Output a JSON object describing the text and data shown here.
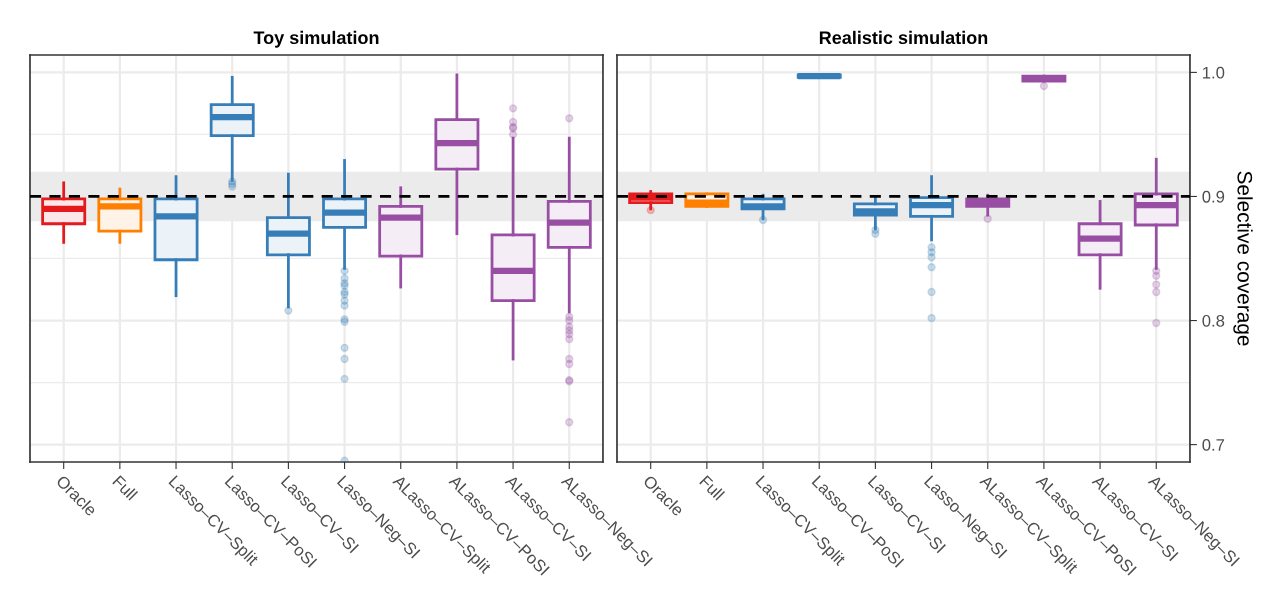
{
  "chart_data": [
    {
      "type": "box",
      "title": "Toy simulation",
      "categories": [
        "Oracle",
        "Full",
        "Lasso–CV–Split",
        "Lasso–CV–PoSI",
        "Lasso–CV–SI",
        "Lasso–Neg–SI",
        "ALasso–CV–Split",
        "ALasso–CV–PoSI",
        "ALasso–CV–SI",
        "ALasso–Neg–SI"
      ],
      "colors": [
        "#e41a1c",
        "#ff7f00",
        "#377eb8",
        "#377eb8",
        "#377eb8",
        "#377eb8",
        "#984ea3",
        "#984ea3",
        "#984ea3",
        "#984ea3"
      ],
      "boxes": [
        {
          "low": 0.863,
          "q1": 0.878,
          "median": 0.89,
          "q3": 0.898,
          "high": 0.911
        },
        {
          "low": 0.863,
          "q1": 0.872,
          "median": 0.892,
          "q3": 0.898,
          "high": 0.906
        },
        {
          "low": 0.82,
          "q1": 0.849,
          "median": 0.884,
          "q3": 0.898,
          "high": 0.916
        },
        {
          "low": 0.913,
          "q1": 0.949,
          "median": 0.964,
          "q3": 0.974,
          "high": 0.996,
          "outliers": [
            0.912,
            0.91,
            0.908
          ]
        },
        {
          "low": 0.811,
          "q1": 0.853,
          "median": 0.87,
          "q3": 0.883,
          "high": 0.918,
          "outliers": [
            0.808
          ]
        },
        {
          "low": 0.842,
          "q1": 0.875,
          "median": 0.887,
          "q3": 0.898,
          "high": 0.929,
          "outliers": [
            0.84,
            0.834,
            0.83,
            0.828,
            0.823,
            0.821,
            0.816,
            0.812,
            0.801,
            0.799,
            0.778,
            0.769,
            0.753,
            0.687
          ]
        },
        {
          "low": 0.827,
          "q1": 0.852,
          "median": 0.883,
          "q3": 0.892,
          "high": 0.907
        },
        {
          "low": 0.87,
          "q1": 0.922,
          "median": 0.943,
          "q3": 0.962,
          "high": 0.998
        },
        {
          "low": 0.769,
          "q1": 0.816,
          "median": 0.84,
          "q3": 0.869,
          "high": 0.947,
          "outliers": [
            0.971,
            0.96,
            0.956,
            0.955,
            0.95
          ]
        },
        {
          "low": 0.807,
          "q1": 0.859,
          "median": 0.879,
          "q3": 0.896,
          "high": 0.947,
          "outliers": [
            0.963,
            0.803,
            0.8,
            0.795,
            0.792,
            0.789,
            0.785,
            0.769,
            0.765,
            0.752,
            0.751,
            0.718
          ]
        }
      ],
      "ylim": [
        0.686,
        1.014
      ],
      "yticks": [
        0.7,
        0.8,
        0.9,
        1.0
      ],
      "tick_labels": "x",
      "grid": true,
      "ref_lines": [
        {
          "axis": "y",
          "value": 0.9,
          "line_style": "dashed",
          "color": "#000000"
        }
      ],
      "bands": [
        {
          "axis": "y",
          "from": 0.88,
          "to": 0.92,
          "color": "#ebebeb"
        }
      ]
    },
    {
      "type": "box",
      "title": "Realistic simulation",
      "ylabel": "Selective coverage",
      "categories": [
        "Oracle",
        "Full",
        "Lasso–CV–Split",
        "Lasso–CV–PoSI",
        "Lasso–CV–SI",
        "Lasso–Neg–SI",
        "ALasso–CV–Split",
        "ALasso–CV–PoSI",
        "ALasso–CV–SI",
        "ALasso–Neg–SI"
      ],
      "colors": [
        "#e41a1c",
        "#ff7f00",
        "#377eb8",
        "#377eb8",
        "#377eb8",
        "#377eb8",
        "#984ea3",
        "#984ea3",
        "#984ea3",
        "#984ea3"
      ],
      "boxes": [
        {
          "low": 0.89,
          "q1": 0.895,
          "median": 0.899,
          "q3": 0.902,
          "high": 0.904,
          "outliers": [
            0.889
          ]
        },
        {
          "low": 0.892,
          "q1": 0.892,
          "median": 0.895,
          "q3": 0.902,
          "high": 0.902
        },
        {
          "low": 0.882,
          "q1": 0.89,
          "median": 0.892,
          "q3": 0.898,
          "high": 0.901,
          "outliers": [
            0.881
          ]
        },
        {
          "low": 0.996,
          "q1": 0.996,
          "median": 0.997,
          "q3": 0.998,
          "high": 0.998
        },
        {
          "low": 0.874,
          "q1": 0.885,
          "median": 0.888,
          "q3": 0.894,
          "high": 0.899,
          "outliers": [
            0.873,
            0.87
          ]
        },
        {
          "low": 0.865,
          "q1": 0.884,
          "median": 0.893,
          "q3": 0.899,
          "high": 0.916,
          "outliers": [
            0.859,
            0.855,
            0.851,
            0.843,
            0.823,
            0.802
          ]
        },
        {
          "low": 0.885,
          "q1": 0.892,
          "median": 0.895,
          "q3": 0.898,
          "high": 0.901,
          "outliers": [
            0.882
          ]
        },
        {
          "low": 0.993,
          "q1": 0.993,
          "median": 0.995,
          "q3": 0.997,
          "high": 0.997,
          "outliers": [
            0.989
          ]
        },
        {
          "low": 0.826,
          "q1": 0.853,
          "median": 0.866,
          "q3": 0.878,
          "high": 0.896
        },
        {
          "low": 0.842,
          "q1": 0.877,
          "median": 0.893,
          "q3": 0.902,
          "high": 0.93,
          "outliers": [
            0.84,
            0.836,
            0.829,
            0.823,
            0.798
          ]
        }
      ],
      "ylim": [
        0.686,
        1.014
      ],
      "yticks": [
        0.7,
        0.8,
        0.9,
        {
          "value": 1.0,
          "label": "1.0"
        }
      ],
      "grid": true,
      "ref_lines": [
        {
          "axis": "y",
          "value": 0.9,
          "line_style": "dashed",
          "color": "#000000"
        }
      ],
      "bands": [
        {
          "axis": "y",
          "from": 0.88,
          "to": 0.92,
          "color": "#ebebeb"
        }
      ]
    }
  ]
}
